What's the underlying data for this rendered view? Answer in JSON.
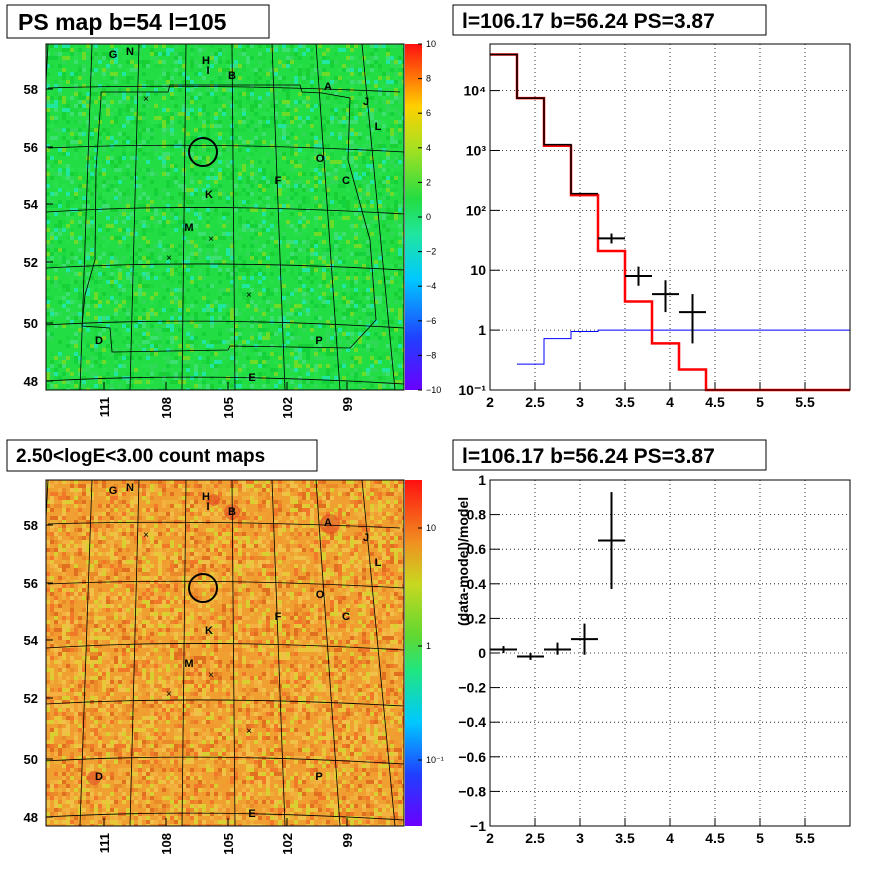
{
  "panels": {
    "ps_map": {
      "title": "PS map b=54 l=105",
      "y_ticks": [
        "58",
        "56",
        "54",
        "52",
        "50",
        "48"
      ],
      "y_tick_values": [
        58,
        56,
        54,
        52,
        50,
        48
      ],
      "x_ticks": [
        "111",
        "108",
        "105",
        "102",
        "99"
      ],
      "x_tick_values": [
        111,
        108,
        105,
        102,
        99
      ],
      "colorbar_ticks": [
        "10",
        "8",
        "6",
        "4",
        "2",
        "0",
        "−2",
        "−4",
        "−6",
        "−8",
        "−10"
      ],
      "colorbar_values": [
        10,
        8,
        6,
        4,
        2,
        0,
        -2,
        -4,
        -6,
        -8,
        -10
      ],
      "source_labels": [
        "G",
        "N",
        "H",
        "I",
        "B",
        "A",
        "J",
        "L",
        "O",
        "C",
        "F",
        "K",
        "M",
        "D",
        "P",
        "E"
      ],
      "background_color": "#22dd44"
    },
    "count_map": {
      "title": "2.50<logE<3.00 count maps",
      "y_ticks": [
        "58",
        "56",
        "54",
        "52",
        "50",
        "48"
      ],
      "y_tick_values": [
        58,
        56,
        54,
        52,
        50,
        48
      ],
      "x_ticks": [
        "111",
        "108",
        "105",
        "102",
        "99"
      ],
      "x_tick_values": [
        111,
        108,
        105,
        102,
        99
      ],
      "colorbar_ticks": [
        "10",
        "1",
        "10⁻¹"
      ],
      "colorbar_values": [
        10,
        1,
        0.1
      ],
      "source_labels": [
        "G",
        "N",
        "H",
        "I",
        "B",
        "A",
        "J",
        "L",
        "O",
        "C",
        "F",
        "K",
        "M",
        "D",
        "P",
        "E"
      ],
      "background_color": "#f0a030"
    },
    "spectrum": {
      "title": "l=106.17 b=56.24 PS=3.87"
    },
    "residual": {
      "title": "l=106.17 b=56.24 PS=3.87",
      "ylabel": "(data-model)/model"
    }
  },
  "chart_data": [
    {
      "type": "heatmap",
      "title": "PS map b=54 l=105",
      "xlabel": "",
      "ylabel": "",
      "x_ticks": [
        111,
        108,
        105,
        102,
        99
      ],
      "y_ticks": [
        58,
        56,
        54,
        52,
        50,
        48
      ],
      "z_range": [
        -10,
        10
      ],
      "colorbar_ticks": [
        10,
        8,
        6,
        4,
        2,
        0,
        -2,
        -4,
        -6,
        -8,
        -10
      ]
    },
    {
      "type": "heatmap",
      "title": "2.50<logE<3.00 count maps",
      "xlabel": "",
      "ylabel": "",
      "x_ticks": [
        111,
        108,
        105,
        102,
        99
      ],
      "y_ticks": [
        58,
        56,
        54,
        52,
        50,
        48
      ],
      "z_scale": "log",
      "colorbar_ticks": [
        10,
        1,
        0.1
      ]
    },
    {
      "type": "line",
      "title": "l=106.17 b=56.24 PS=3.87",
      "xlabel": "",
      "ylabel": "",
      "x_range": [
        2,
        6
      ],
      "y_range": [
        0.1,
        60000
      ],
      "y_scale": "log",
      "x_ticks": [
        2,
        2.5,
        3,
        3.5,
        4,
        4.5,
        5,
        5.5
      ],
      "y_ticks": [
        0.1,
        1,
        10,
        100,
        1000,
        10000
      ],
      "y_tick_labels": [
        "10⁻¹",
        "1",
        "10",
        "10²",
        "10³",
        "10⁴"
      ],
      "grid": true,
      "series": [
        {
          "color": "#ff0000",
          "bins": [
            [
              2,
              2.3,
              40000
            ],
            [
              2.3,
              2.6,
              7500
            ],
            [
              2.6,
              2.9,
              1200
            ],
            [
              2.9,
              3.2,
              180
            ],
            [
              3.2,
              3.5,
              21
            ],
            [
              3.5,
              3.8,
              3
            ],
            [
              3.8,
              4.1,
              0.6
            ],
            [
              4.1,
              4.4,
              0.22
            ],
            [
              4.4,
              6,
              0.1
            ]
          ]
        },
        {
          "color": "#000000",
          "bins": [
            [
              2,
              2.3,
              40000
            ],
            [
              2.3,
              2.6,
              7500
            ],
            [
              2.6,
              2.9,
              1250
            ],
            [
              2.9,
              3.2,
              190
            ]
          ]
        },
        {
          "color": "#0000ff",
          "bins": [
            [
              2.3,
              2.6,
              0.27
            ],
            [
              2.6,
              2.9,
              0.72
            ],
            [
              2.9,
              3.2,
              0.95
            ],
            [
              3.2,
              6,
              1.0
            ]
          ]
        }
      ],
      "points": [
        {
          "x": 3.35,
          "xerr": 0.15,
          "y": 34,
          "ylo": 28,
          "yhi": 41
        },
        {
          "x": 3.65,
          "xerr": 0.15,
          "y": 8,
          "ylo": 5.5,
          "yhi": 11.5
        },
        {
          "x": 3.95,
          "xerr": 0.15,
          "y": 4,
          "ylo": 2,
          "yhi": 6.8
        },
        {
          "x": 4.25,
          "xerr": 0.15,
          "y": 2,
          "ylo": 0.6,
          "yhi": 4
        }
      ]
    },
    {
      "type": "scatter",
      "title": "l=106.17 b=56.24 PS=3.87",
      "xlabel": "",
      "ylabel": "(data-model)/model",
      "x_range": [
        2,
        6
      ],
      "y_range": [
        -1,
        1
      ],
      "x_ticks": [
        2,
        2.5,
        3,
        3.5,
        4,
        4.5,
        5,
        5.5
      ],
      "y_ticks": [
        1,
        0.8,
        0.6,
        0.4,
        0.2,
        0,
        -0.2,
        -0.4,
        -0.6,
        -0.8,
        -1
      ],
      "grid": true,
      "points": [
        {
          "x": 2.15,
          "xerr": 0.15,
          "y": 0.02,
          "ylo": 0.0,
          "yhi": 0.04
        },
        {
          "x": 2.45,
          "xerr": 0.15,
          "y": -0.02,
          "ylo": -0.04,
          "yhi": 0.0
        },
        {
          "x": 2.75,
          "xerr": 0.15,
          "y": 0.02,
          "ylo": -0.01,
          "yhi": 0.06
        },
        {
          "x": 3.05,
          "xerr": 0.15,
          "y": 0.08,
          "ylo": -0.01,
          "yhi": 0.17
        },
        {
          "x": 3.35,
          "xerr": 0.15,
          "y": 0.65,
          "ylo": 0.37,
          "yhi": 0.93
        }
      ]
    }
  ]
}
